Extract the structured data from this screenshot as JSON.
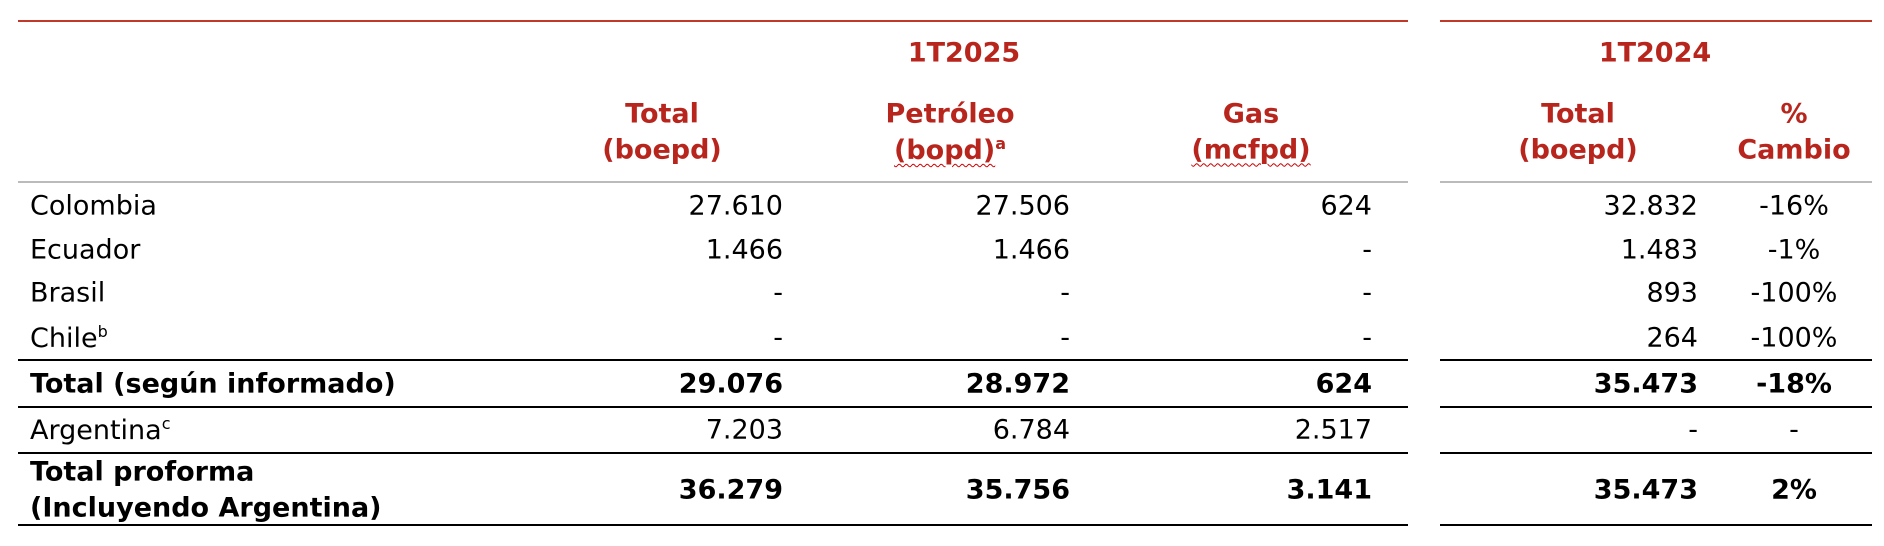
{
  "table": {
    "groups": [
      "1T2025",
      "1T2024"
    ],
    "columns": [
      {
        "line1": "Total",
        "line2": "(boepd)"
      },
      {
        "line1": "Petróleo",
        "line2": "(bopd)",
        "note": "a"
      },
      {
        "line1": "Gas",
        "line2": "(mcfpd)"
      },
      {
        "line1": "Total",
        "line2": "(boepd)"
      },
      {
        "line1": "%",
        "line2": "Cambio"
      }
    ],
    "rows": [
      {
        "label": [
          "Colombia"
        ],
        "cells": [
          "27.610",
          "27.506",
          "624",
          "32.832",
          "-16%"
        ]
      },
      {
        "label": [
          "Ecuador"
        ],
        "cells": [
          "1.466",
          "1.466",
          "-",
          "1.483",
          "-1%"
        ]
      },
      {
        "label": [
          "Brasil"
        ],
        "cells": [
          "-",
          "-",
          "-",
          "893",
          "-100%"
        ]
      },
      {
        "label": [
          "Chile"
        ],
        "note": "b",
        "cells": [
          "-",
          "-",
          "-",
          "264",
          "-100%"
        ]
      },
      {
        "label": [
          "Total (según informado)"
        ],
        "bold": true,
        "cells": [
          "29.076",
          "28.972",
          "624",
          "35.473",
          "-18%"
        ]
      },
      {
        "label": [
          "Argentina"
        ],
        "note": "c",
        "cells": [
          "7.203",
          "6.784",
          "2.517",
          "-",
          "-"
        ]
      },
      {
        "label": [
          "Total proforma",
          "(Incluyendo Argentina)"
        ],
        "bold": true,
        "cells": [
          "36.279",
          "35.756",
          "3.141",
          "35.473",
          "2%"
        ]
      }
    ]
  }
}
